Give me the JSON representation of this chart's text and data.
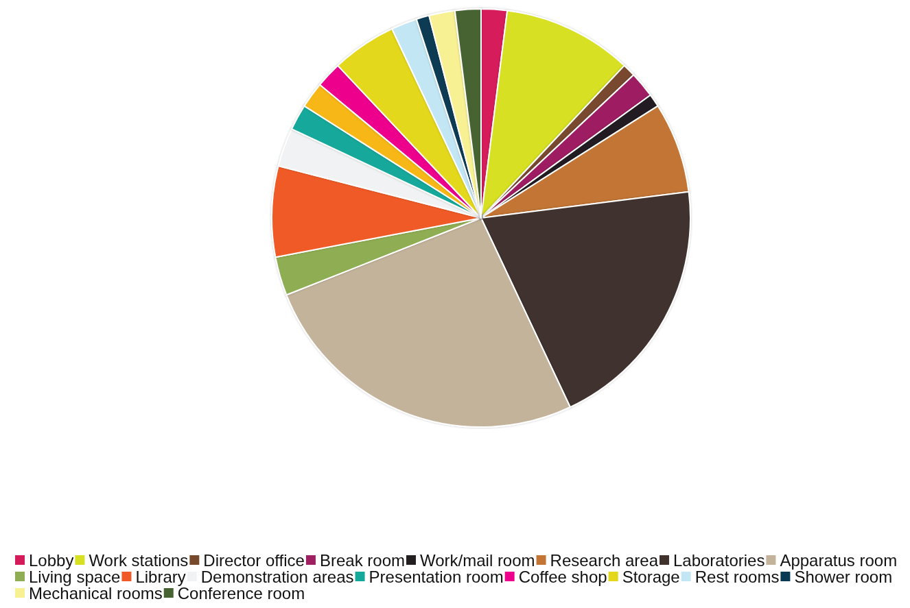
{
  "chart_data": {
    "type": "pie",
    "categories": [
      "Lobby",
      "Work stations",
      "Director office",
      "Break room",
      "Work/mail room",
      "Research area",
      "Laboratories",
      "Apparatus room",
      "Living space",
      "Library",
      "Demonstration areas",
      "Presentation room",
      null,
      "Coffee shop",
      "Storage",
      "Rest rooms",
      "Shower room",
      "Mechanical rooms",
      "Conference room"
    ],
    "values": [
      2,
      10,
      1,
      2,
      1,
      7,
      20,
      26,
      3,
      7,
      3,
      2,
      2,
      2,
      5,
      2,
      1,
      2,
      2
    ],
    "colors": [
      "#d61b5a",
      "#d7e023",
      "#784a2d",
      "#9e1f62",
      "#231f20",
      "#c27535",
      "#41322d",
      "#c3b39b",
      "#8fad53",
      "#f05a28",
      "#f1f2f3",
      "#13a89a",
      "#f7b719",
      "#ec008c",
      "#e3d81c",
      "#c3e6f4",
      "#083b53",
      "#f7f193",
      "#476331"
    ],
    "legend": "bottom"
  }
}
